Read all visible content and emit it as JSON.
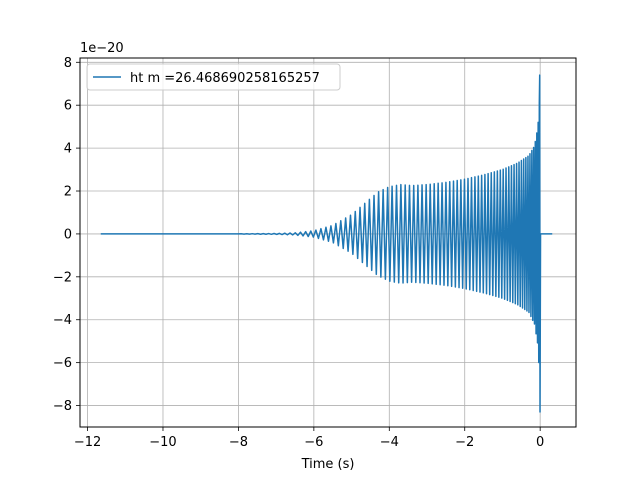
{
  "chart_data": {
    "type": "line",
    "title": "",
    "xlabel": "Time (s)",
    "ylabel": "",
    "y_offset_label": "1e−20",
    "xlim": [
      -12.2,
      0.95
    ],
    "ylim": [
      -9.0,
      8.2
    ],
    "x_ticks": [
      -12,
      -10,
      -8,
      -6,
      -4,
      -2,
      0
    ],
    "x_tick_labels": [
      "−12",
      "−10",
      "−8",
      "−6",
      "−4",
      "−2",
      "0"
    ],
    "y_ticks": [
      -8,
      -6,
      -4,
      -2,
      0,
      2,
      4,
      6,
      8
    ],
    "y_tick_labels": [
      "−8",
      "−6",
      "−4",
      "−2",
      "0",
      "2",
      "4",
      "6",
      "8"
    ],
    "grid": true,
    "legend_position": "top-left",
    "line_color": "#1f77b4",
    "series": [
      {
        "name": "ht m =26.468690258165257",
        "x_start": -11.65,
        "merger_time": 0.0,
        "x_end": 0.32,
        "envelope": {
          "t": [
            -11.65,
            -8.0,
            -7.0,
            -6.5,
            -6.0,
            -5.5,
            -5.0,
            -4.6,
            -4.3,
            -4.0,
            -3.7,
            -3.4,
            -3.0,
            -2.5,
            -2.0,
            -1.5,
            -1.0,
            -0.6,
            -0.3,
            -0.15,
            -0.06,
            -0.02,
            0.0
          ],
          "upper": [
            0.0,
            0.005,
            0.02,
            0.05,
            0.15,
            0.4,
            0.9,
            1.5,
            1.95,
            2.2,
            2.3,
            2.25,
            2.3,
            2.4,
            2.55,
            2.75,
            3.0,
            3.3,
            3.65,
            4.1,
            5.0,
            6.2,
            7.4
          ],
          "lower": [
            0.0,
            -0.005,
            -0.02,
            -0.05,
            -0.15,
            -0.4,
            -0.9,
            -1.5,
            -1.95,
            -2.2,
            -2.3,
            -2.25,
            -2.3,
            -2.4,
            -2.55,
            -2.75,
            -3.0,
            -3.3,
            -3.65,
            -4.2,
            -5.2,
            -6.6,
            -8.3
          ]
        }
      }
    ]
  }
}
